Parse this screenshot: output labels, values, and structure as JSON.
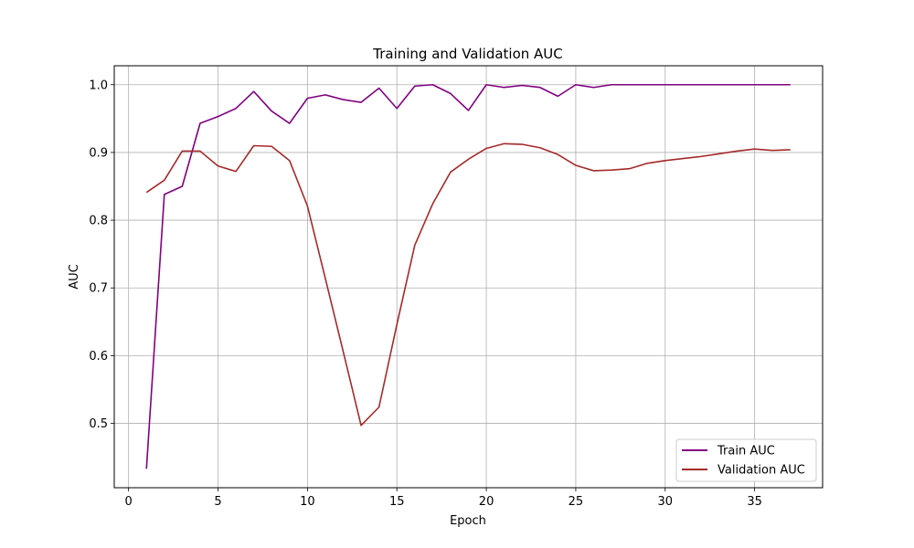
{
  "chart_data": {
    "type": "line",
    "title": "Training and Validation AUC",
    "xlabel": "Epoch",
    "ylabel": "AUC",
    "xlim": [
      -0.8,
      38.8
    ],
    "ylim": [
      0.405,
      1.028
    ],
    "xticks": [
      0,
      5,
      10,
      15,
      20,
      25,
      30,
      35
    ],
    "yticks": [
      0.5,
      0.6,
      0.7,
      0.8,
      0.9,
      1.0
    ],
    "grid": true,
    "legend_position": "lower-right",
    "x": [
      1,
      2,
      3,
      4,
      5,
      6,
      7,
      8,
      9,
      10,
      11,
      12,
      13,
      14,
      15,
      16,
      17,
      18,
      19,
      20,
      21,
      22,
      23,
      24,
      25,
      26,
      27,
      28,
      29,
      30,
      31,
      32,
      33,
      34,
      35,
      36,
      37
    ],
    "series": [
      {
        "name": "Train AUC",
        "color": "#800080",
        "values": [
          0.433,
          0.838,
          0.85,
          0.943,
          0.953,
          0.965,
          0.99,
          0.961,
          0.943,
          0.98,
          0.985,
          0.978,
          0.974,
          0.995,
          0.965,
          0.998,
          1.0,
          0.987,
          0.962,
          1.0,
          0.996,
          0.999,
          0.996,
          0.983,
          1.0,
          0.996,
          1.0,
          1.0,
          1.0,
          1.0,
          1.0,
          1.0,
          1.0,
          1.0,
          1.0,
          1.0,
          1.0
        ]
      },
      {
        "name": "Validation AUC",
        "color": "#a52a2a",
        "values": [
          0.841,
          0.859,
          0.902,
          0.902,
          0.88,
          0.872,
          0.91,
          0.909,
          0.888,
          0.821,
          0.714,
          0.606,
          0.497,
          0.524,
          0.646,
          0.763,
          0.824,
          0.871,
          0.89,
          0.906,
          0.913,
          0.912,
          0.907,
          0.897,
          0.881,
          0.873,
          0.874,
          0.876,
          0.884,
          0.888,
          0.891,
          0.894,
          0.898,
          0.902,
          0.905,
          0.903,
          0.904
        ]
      }
    ]
  }
}
